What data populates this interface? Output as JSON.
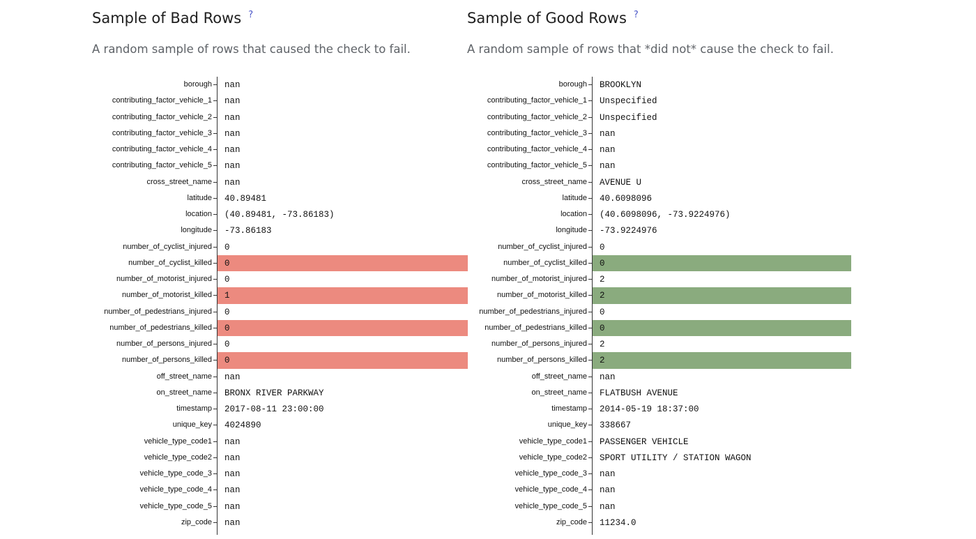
{
  "bad": {
    "title": "Sample of Bad Rows",
    "help": "?",
    "subtitle": "A random sample of rows that caused the check to fail.",
    "rows": [
      {
        "field": "borough",
        "value": "nan",
        "highlight": false
      },
      {
        "field": "contributing_factor_vehicle_1",
        "value": "nan",
        "highlight": false
      },
      {
        "field": "contributing_factor_vehicle_2",
        "value": "nan",
        "highlight": false
      },
      {
        "field": "contributing_factor_vehicle_3",
        "value": "nan",
        "highlight": false
      },
      {
        "field": "contributing_factor_vehicle_4",
        "value": "nan",
        "highlight": false
      },
      {
        "field": "contributing_factor_vehicle_5",
        "value": "nan",
        "highlight": false
      },
      {
        "field": "cross_street_name",
        "value": "nan",
        "highlight": false
      },
      {
        "field": "latitude",
        "value": "40.89481",
        "highlight": false
      },
      {
        "field": "location",
        "value": "(40.89481, -73.86183)",
        "highlight": false
      },
      {
        "field": "longitude",
        "value": "-73.86183",
        "highlight": false
      },
      {
        "field": "number_of_cyclist_injured",
        "value": "0",
        "highlight": false
      },
      {
        "field": "number_of_cyclist_killed",
        "value": "0",
        "highlight": true
      },
      {
        "field": "number_of_motorist_injured",
        "value": "0",
        "highlight": false
      },
      {
        "field": "number_of_motorist_killed",
        "value": "1",
        "highlight": true
      },
      {
        "field": "number_of_pedestrians_injured",
        "value": "0",
        "highlight": false
      },
      {
        "field": "number_of_pedestrians_killed",
        "value": "0",
        "highlight": true
      },
      {
        "field": "number_of_persons_injured",
        "value": "0",
        "highlight": false
      },
      {
        "field": "number_of_persons_killed",
        "value": "0",
        "highlight": true
      },
      {
        "field": "off_street_name",
        "value": "nan",
        "highlight": false
      },
      {
        "field": "on_street_name",
        "value": "BRONX RIVER PARKWAY",
        "highlight": false
      },
      {
        "field": "timestamp",
        "value": "2017-08-11 23:00:00",
        "highlight": false
      },
      {
        "field": "unique_key",
        "value": "4024890",
        "highlight": false
      },
      {
        "field": "vehicle_type_code1",
        "value": "nan",
        "highlight": false
      },
      {
        "field": "vehicle_type_code2",
        "value": "nan",
        "highlight": false
      },
      {
        "field": "vehicle_type_code_3",
        "value": "nan",
        "highlight": false
      },
      {
        "field": "vehicle_type_code_4",
        "value": "nan",
        "highlight": false
      },
      {
        "field": "vehicle_type_code_5",
        "value": "nan",
        "highlight": false
      },
      {
        "field": "zip_code",
        "value": "nan",
        "highlight": false
      }
    ]
  },
  "good": {
    "title": "Sample of Good Rows",
    "help": "?",
    "subtitle": "A random sample of rows that *did not* cause the check to fail.",
    "rows": [
      {
        "field": "borough",
        "value": "BROOKLYN",
        "highlight": false
      },
      {
        "field": "contributing_factor_vehicle_1",
        "value": "Unspecified",
        "highlight": false
      },
      {
        "field": "contributing_factor_vehicle_2",
        "value": "Unspecified",
        "highlight": false
      },
      {
        "field": "contributing_factor_vehicle_3",
        "value": "nan",
        "highlight": false
      },
      {
        "field": "contributing_factor_vehicle_4",
        "value": "nan",
        "highlight": false
      },
      {
        "field": "contributing_factor_vehicle_5",
        "value": "nan",
        "highlight": false
      },
      {
        "field": "cross_street_name",
        "value": "AVENUE U",
        "highlight": false
      },
      {
        "field": "latitude",
        "value": "40.6098096",
        "highlight": false
      },
      {
        "field": "location",
        "value": "(40.6098096, -73.9224976)",
        "highlight": false
      },
      {
        "field": "longitude",
        "value": "-73.9224976",
        "highlight": false
      },
      {
        "field": "number_of_cyclist_injured",
        "value": "0",
        "highlight": false
      },
      {
        "field": "number_of_cyclist_killed",
        "value": "0",
        "highlight": true
      },
      {
        "field": "number_of_motorist_injured",
        "value": "2",
        "highlight": false
      },
      {
        "field": "number_of_motorist_killed",
        "value": "2",
        "highlight": true
      },
      {
        "field": "number_of_pedestrians_injured",
        "value": "0",
        "highlight": false
      },
      {
        "field": "number_of_pedestrians_killed",
        "value": "0",
        "highlight": true
      },
      {
        "field": "number_of_persons_injured",
        "value": "2",
        "highlight": false
      },
      {
        "field": "number_of_persons_killed",
        "value": "2",
        "highlight": true
      },
      {
        "field": "off_street_name",
        "value": "nan",
        "highlight": false
      },
      {
        "field": "on_street_name",
        "value": "FLATBUSH AVENUE",
        "highlight": false
      },
      {
        "field": "timestamp",
        "value": "2014-05-19 18:37:00",
        "highlight": false
      },
      {
        "field": "unique_key",
        "value": "338667",
        "highlight": false
      },
      {
        "field": "vehicle_type_code1",
        "value": "PASSENGER VEHICLE",
        "highlight": false
      },
      {
        "field": "vehicle_type_code2",
        "value": "SPORT UTILITY / STATION WAGON",
        "highlight": false
      },
      {
        "field": "vehicle_type_code_3",
        "value": "nan",
        "highlight": false
      },
      {
        "field": "vehicle_type_code_4",
        "value": "nan",
        "highlight": false
      },
      {
        "field": "vehicle_type_code_5",
        "value": "nan",
        "highlight": false
      },
      {
        "field": "zip_code",
        "value": "11234.0",
        "highlight": false
      }
    ]
  },
  "colors": {
    "bad_highlight": "#ec8a7f",
    "good_highlight": "#8aab7e",
    "help_link": "#4a56c8"
  },
  "icons": {
    "help": "help-icon"
  }
}
